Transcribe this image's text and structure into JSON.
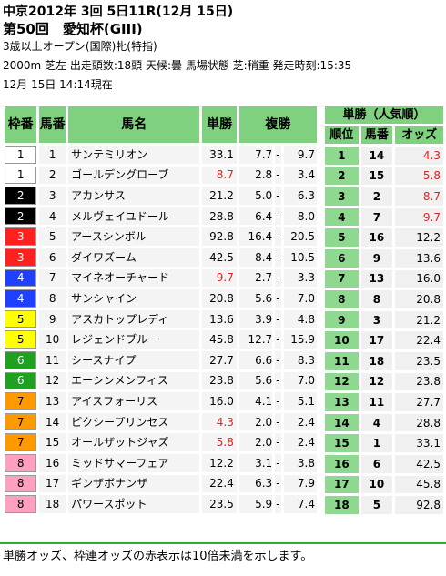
{
  "header": {
    "line1": "中京2012年 3回 5日11R(12月 15日)",
    "line2": "第50回　愛知杯(GIII)",
    "line3": "3歳以上オープン(国際)牝(特指)",
    "line4": "2000m 芝左 出走頭数:18頭 天候:曇 馬場状態 芝:稍重 発走時刻:15:35",
    "line5": "12月 15日 14:14現在"
  },
  "table": {
    "headers": {
      "waku": "枠番",
      "umaban": "馬番",
      "name": "馬名",
      "win": "単勝",
      "place": "複勝"
    },
    "rows": [
      {
        "waku": "1",
        "umaban": "1",
        "name": "サンテミリオン",
        "win": "33.1",
        "win_red": false,
        "place_lo": "7.7",
        "place_hi": "9.7"
      },
      {
        "waku": "1",
        "umaban": "2",
        "name": "ゴールデングローブ",
        "win": "8.7",
        "win_red": true,
        "place_lo": "2.8",
        "place_hi": "3.4"
      },
      {
        "waku": "2",
        "umaban": "3",
        "name": "アカンサス",
        "win": "21.2",
        "win_red": false,
        "place_lo": "5.0",
        "place_hi": "6.3"
      },
      {
        "waku": "2",
        "umaban": "4",
        "name": "メルヴェイユドール",
        "win": "28.8",
        "win_red": false,
        "place_lo": "6.4",
        "place_hi": "8.0"
      },
      {
        "waku": "3",
        "umaban": "5",
        "name": "アースシンボル",
        "win": "92.8",
        "win_red": false,
        "place_lo": "16.4",
        "place_hi": "20.5"
      },
      {
        "waku": "3",
        "umaban": "6",
        "name": "ダイワズーム",
        "win": "42.5",
        "win_red": false,
        "place_lo": "8.4",
        "place_hi": "10.5"
      },
      {
        "waku": "4",
        "umaban": "7",
        "name": "マイネオーチャード",
        "win": "9.7",
        "win_red": true,
        "place_lo": "2.7",
        "place_hi": "3.3"
      },
      {
        "waku": "4",
        "umaban": "8",
        "name": "サンシャイン",
        "win": "20.8",
        "win_red": false,
        "place_lo": "5.6",
        "place_hi": "7.0"
      },
      {
        "waku": "5",
        "umaban": "9",
        "name": "アスカトップレディ",
        "win": "13.6",
        "win_red": false,
        "place_lo": "3.9",
        "place_hi": "4.8"
      },
      {
        "waku": "5",
        "umaban": "10",
        "name": "レジェンドブルー",
        "win": "45.8",
        "win_red": false,
        "place_lo": "12.7",
        "place_hi": "15.9"
      },
      {
        "waku": "6",
        "umaban": "11",
        "name": "シースナイプ",
        "win": "27.7",
        "win_red": false,
        "place_lo": "6.6",
        "place_hi": "8.3"
      },
      {
        "waku": "6",
        "umaban": "12",
        "name": "エーシンメンフィス",
        "win": "23.8",
        "win_red": false,
        "place_lo": "5.6",
        "place_hi": "7.0"
      },
      {
        "waku": "7",
        "umaban": "13",
        "name": "アイスフォーリス",
        "win": "16.0",
        "win_red": false,
        "place_lo": "4.1",
        "place_hi": "5.1"
      },
      {
        "waku": "7",
        "umaban": "14",
        "name": "ピクシープリンセス",
        "win": "4.3",
        "win_red": true,
        "place_lo": "2.0",
        "place_hi": "2.4"
      },
      {
        "waku": "7",
        "umaban": "15",
        "name": "オールザットジャズ",
        "win": "5.8",
        "win_red": true,
        "place_lo": "2.0",
        "place_hi": "2.4"
      },
      {
        "waku": "8",
        "umaban": "16",
        "name": "ミッドサマーフェア",
        "win": "12.2",
        "win_red": false,
        "place_lo": "3.1",
        "place_hi": "3.8"
      },
      {
        "waku": "8",
        "umaban": "17",
        "name": "ギンザボナンザ",
        "win": "22.4",
        "win_red": false,
        "place_lo": "6.3",
        "place_hi": "7.9"
      },
      {
        "waku": "8",
        "umaban": "18",
        "name": "パワースポット",
        "win": "23.5",
        "win_red": false,
        "place_lo": "5.9",
        "place_hi": "7.4"
      }
    ]
  },
  "popularity": {
    "title": "単勝（人気順）",
    "headers": {
      "rank": "順位",
      "umaban": "馬番",
      "odds": "オッズ"
    },
    "rows": [
      {
        "rank": "1",
        "umaban": "14",
        "odds": "4.3",
        "red": true
      },
      {
        "rank": "2",
        "umaban": "15",
        "odds": "5.8",
        "red": true
      },
      {
        "rank": "3",
        "umaban": "2",
        "odds": "8.7",
        "red": true
      },
      {
        "rank": "4",
        "umaban": "7",
        "odds": "9.7",
        "red": true
      },
      {
        "rank": "5",
        "umaban": "16",
        "odds": "12.2",
        "red": false
      },
      {
        "rank": "6",
        "umaban": "9",
        "odds": "13.6",
        "red": false
      },
      {
        "rank": "7",
        "umaban": "13",
        "odds": "16.0",
        "red": false
      },
      {
        "rank": "8",
        "umaban": "8",
        "odds": "20.8",
        "red": false
      },
      {
        "rank": "9",
        "umaban": "3",
        "odds": "21.2",
        "red": false
      },
      {
        "rank": "10",
        "umaban": "17",
        "odds": "22.4",
        "red": false
      },
      {
        "rank": "11",
        "umaban": "18",
        "odds": "23.5",
        "red": false
      },
      {
        "rank": "12",
        "umaban": "12",
        "odds": "23.8",
        "red": false
      },
      {
        "rank": "13",
        "umaban": "11",
        "odds": "27.7",
        "red": false
      },
      {
        "rank": "14",
        "umaban": "4",
        "odds": "28.8",
        "red": false
      },
      {
        "rank": "15",
        "umaban": "1",
        "odds": "33.1",
        "red": false
      },
      {
        "rank": "16",
        "umaban": "6",
        "odds": "42.5",
        "red": false
      },
      {
        "rank": "17",
        "umaban": "10",
        "odds": "45.8",
        "red": false
      },
      {
        "rank": "18",
        "umaban": "5",
        "odds": "92.8",
        "red": false
      }
    ]
  },
  "waku_colors": {
    "1": {
      "bg": "#ffffff",
      "fg": "#000000"
    },
    "2": {
      "bg": "#000000",
      "fg": "#ffffff"
    },
    "3": {
      "bg": "#ff2020",
      "fg": "#ffffff"
    },
    "4": {
      "bg": "#2040ff",
      "fg": "#ffffff"
    },
    "5": {
      "bg": "#ffff00",
      "fg": "#000000"
    },
    "6": {
      "bg": "#20a020",
      "fg": "#ffffff"
    },
    "7": {
      "bg": "#ff9900",
      "fg": "#000000"
    },
    "8": {
      "bg": "#ffa0c0",
      "fg": "#000000"
    }
  },
  "footer": "単勝オッズ、枠連オッズの赤表示は10倍未満を示します。"
}
